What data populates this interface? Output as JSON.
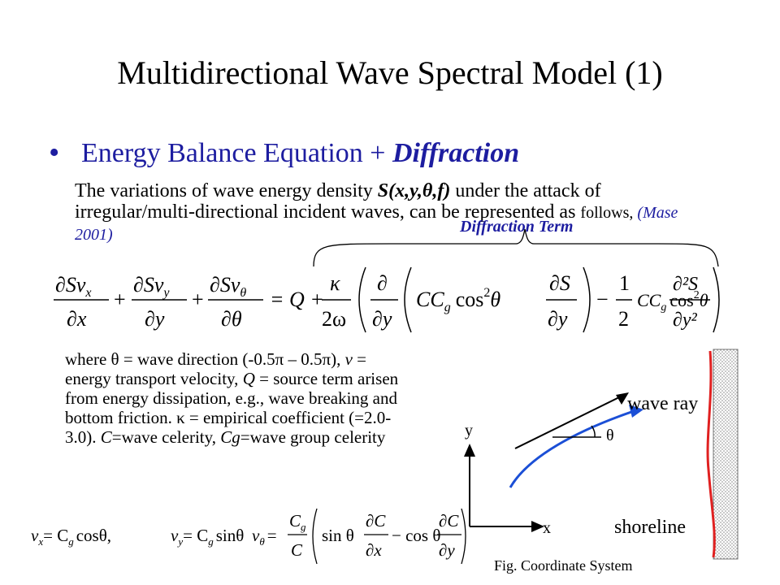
{
  "slide": {
    "title": "Multidirectional Wave Spectral Model (1)",
    "bullet_symbol": "•",
    "bullet_main": "Energy Balance Equation + ",
    "bullet_emphasis": "Diffraction",
    "paragraph": {
      "part1": "The variations of wave energy density ",
      "symbol": "S(x,y,θ,f)",
      "part2": " under the attack of irregular/multi-directional incident waves, can be represented as ",
      "part3": "follows, ",
      "citation": "(Mase 2001)"
    },
    "diffraction_label": "Diffraction Term",
    "where_text": {
      "a": "where θ = wave direction (-0.5π – 0.5π), ",
      "v": "v",
      "b": " = energy transport velocity, ",
      "q": "Q",
      "c": " = source term arisen from energy dissipation, e.g., wave breaking and bottom friction. κ = empirical coefficient (=2.0-3.0). ",
      "cvar": "C",
      "d": "=wave celerity, ",
      "cg": "Cg",
      "e": "=wave group celerity"
    },
    "figure": {
      "wave_ray_label": "wave ray",
      "theta_label": "θ",
      "y_axis_label": "y",
      "x_axis_label": "x",
      "shoreline_label": "shoreline",
      "caption": "Fig. Coordinate System"
    },
    "equation": {
      "sv_x": "∂Sv",
      "sub_x": "x",
      "dx": "∂x",
      "sub_y": "y",
      "dy": "∂y",
      "sub_theta": "θ",
      "dtheta": "∂θ",
      "plus": "+",
      "eq_q": "= Q +",
      "kappa": "κ",
      "two_omega": "2ω",
      "partial": "∂",
      "cc": "CC",
      "g": "g",
      "cos": "cos",
      "two": "2",
      "theta": "θ",
      "ds": "∂S",
      "minus": "−",
      "one": "1",
      "d2s": "∂²S",
      "dy2": "∂y²"
    },
    "velocity_eq": {
      "vx_eq": "= C",
      "cos_theta": "cosθ,",
      "sin_theta": "sinθ",
      "cg": "C",
      "g": "g",
      "c": "C",
      "sin": "sin θ",
      "dcdx_num": "∂C",
      "dcdx_den": "∂x",
      "minus_cos": "− cos θ",
      "dcdy_num": "∂C",
      "dcdy_den": "∂y",
      "v": "v",
      "x": "x",
      "y": "y",
      "th": "θ",
      "eq": "="
    },
    "colors": {
      "title": "#000000",
      "accent": "#1d1da0",
      "shoreline": "#e02020",
      "wave_ray_blue": "#1b4fd6"
    }
  }
}
